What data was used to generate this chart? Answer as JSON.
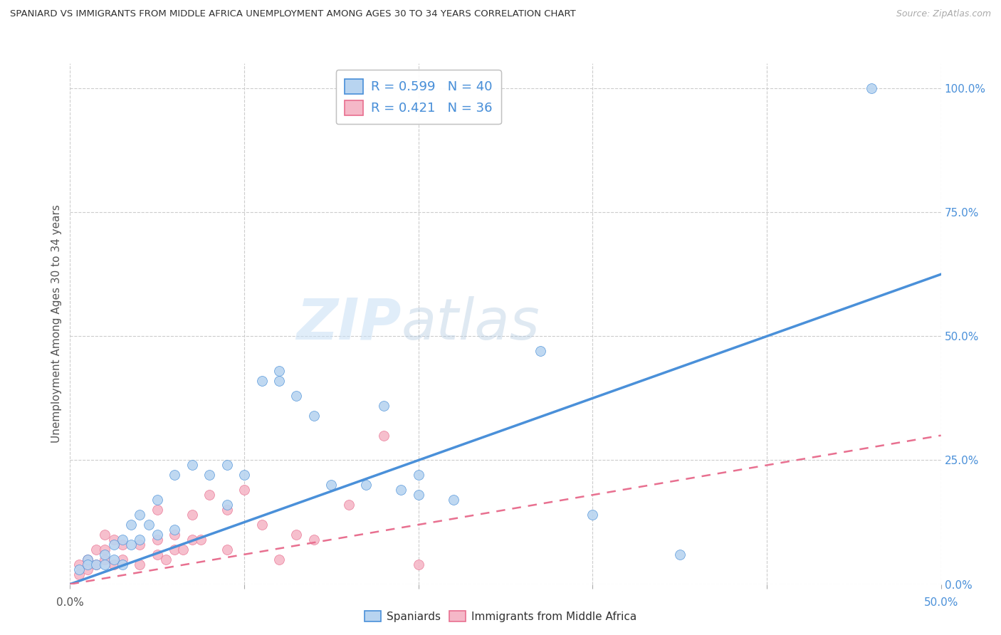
{
  "title": "SPANIARD VS IMMIGRANTS FROM MIDDLE AFRICA UNEMPLOYMENT AMONG AGES 30 TO 34 YEARS CORRELATION CHART",
  "source": "Source: ZipAtlas.com",
  "ylabel": "Unemployment Among Ages 30 to 34 years",
  "xlim": [
    0.0,
    0.5
  ],
  "ylim": [
    0.0,
    1.05
  ],
  "xticks": [
    0.0,
    0.1,
    0.2,
    0.3,
    0.4,
    0.5
  ],
  "xtick_labels_left": "0.0%",
  "xtick_labels_right": "50.0%",
  "ytick_labels_right": [
    "0.0%",
    "25.0%",
    "50.0%",
    "75.0%",
    "100.0%"
  ],
  "yticks_right": [
    0.0,
    0.25,
    0.5,
    0.75,
    1.0
  ],
  "spaniards_color": "#b8d4f0",
  "immigrants_color": "#f5b8c8",
  "trend_blue": "#4a90d9",
  "trend_pink": "#e87090",
  "R_spaniards": 0.599,
  "N_spaniards": 40,
  "R_immigrants": 0.421,
  "N_immigrants": 36,
  "watermark_zip": "ZIP",
  "watermark_atlas": "atlas",
  "sp_trend_x0": 0.0,
  "sp_trend_y0": 0.0,
  "sp_trend_x1": 0.5,
  "sp_trend_y1": 0.625,
  "im_trend_x0": 0.0,
  "im_trend_y0": 0.0,
  "im_trend_x1": 0.5,
  "im_trend_y1": 0.3,
  "spaniards_x": [
    0.46,
    0.27,
    0.005,
    0.01,
    0.01,
    0.015,
    0.02,
    0.02,
    0.025,
    0.025,
    0.03,
    0.03,
    0.035,
    0.035,
    0.04,
    0.04,
    0.045,
    0.05,
    0.05,
    0.06,
    0.06,
    0.07,
    0.08,
    0.09,
    0.09,
    0.1,
    0.11,
    0.12,
    0.12,
    0.13,
    0.14,
    0.15,
    0.17,
    0.18,
    0.19,
    0.2,
    0.2,
    0.22,
    0.3,
    0.35
  ],
  "spaniards_y": [
    1.0,
    0.47,
    0.03,
    0.05,
    0.04,
    0.04,
    0.04,
    0.06,
    0.05,
    0.08,
    0.04,
    0.09,
    0.08,
    0.12,
    0.09,
    0.14,
    0.12,
    0.1,
    0.17,
    0.11,
    0.22,
    0.24,
    0.22,
    0.16,
    0.24,
    0.22,
    0.41,
    0.43,
    0.41,
    0.38,
    0.34,
    0.2,
    0.2,
    0.36,
    0.19,
    0.18,
    0.22,
    0.17,
    0.14,
    0.06
  ],
  "immigrants_x": [
    0.005,
    0.005,
    0.01,
    0.01,
    0.015,
    0.015,
    0.02,
    0.02,
    0.02,
    0.025,
    0.025,
    0.03,
    0.03,
    0.04,
    0.04,
    0.05,
    0.05,
    0.05,
    0.055,
    0.06,
    0.06,
    0.065,
    0.07,
    0.07,
    0.075,
    0.08,
    0.09,
    0.09,
    0.1,
    0.11,
    0.12,
    0.13,
    0.14,
    0.16,
    0.18,
    0.2
  ],
  "immigrants_y": [
    0.02,
    0.04,
    0.03,
    0.05,
    0.04,
    0.07,
    0.05,
    0.07,
    0.1,
    0.04,
    0.09,
    0.05,
    0.08,
    0.04,
    0.08,
    0.06,
    0.09,
    0.15,
    0.05,
    0.07,
    0.1,
    0.07,
    0.09,
    0.14,
    0.09,
    0.18,
    0.07,
    0.15,
    0.19,
    0.12,
    0.05,
    0.1,
    0.09,
    0.16,
    0.3,
    0.04
  ]
}
